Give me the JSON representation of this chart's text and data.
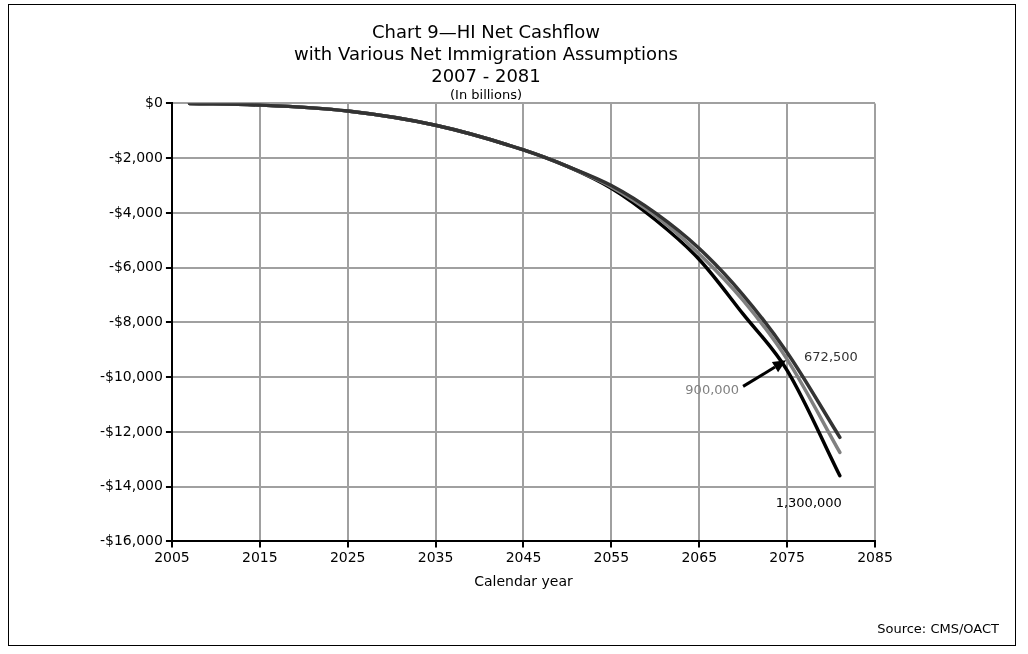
{
  "chart_data": {
    "type": "line",
    "title": "Chart 9—HI Net Cashflow\nwith Various Net Immigration Assumptions\n2007 - 2081",
    "subtitle": "(In billions)",
    "xlabel": "Calendar year",
    "annotations": [
      "Source: CMS/OACT"
    ],
    "xlim": [
      2005,
      2085
    ],
    "xticks": [
      2005,
      2015,
      2025,
      2035,
      2045,
      2055,
      2065,
      2075,
      2085
    ],
    "ylim": [
      -16000,
      0
    ],
    "yticks": [
      {
        "value": 0,
        "label": "$0"
      },
      {
        "value": -2000,
        "label": "-$2,000"
      },
      {
        "value": -4000,
        "label": "-$4,000"
      },
      {
        "value": -6000,
        "label": "-$6,000"
      },
      {
        "value": -8000,
        "label": "-$8,000"
      },
      {
        "value": -10000,
        "label": "-$10,000"
      },
      {
        "value": -12000,
        "label": "-$12,000"
      },
      {
        "value": -14000,
        "label": "-$14,000"
      },
      {
        "value": -16000,
        "label": "-$16,000"
      }
    ],
    "x": [
      2007,
      2015,
      2025,
      2035,
      2045,
      2050,
      2055,
      2060,
      2065,
      2070,
      2075,
      2081
    ],
    "series": [
      {
        "name": "672,500",
        "color": "#333333",
        "values": [
          0,
          -60,
          -280,
          -800,
          -1700,
          -2300,
          -3000,
          -4000,
          -5300,
          -7000,
          -9100,
          -12200
        ]
      },
      {
        "name": "900,000",
        "color": "#808080",
        "values": [
          0,
          -60,
          -280,
          -800,
          -1700,
          -2300,
          -3050,
          -4100,
          -5500,
          -7200,
          -9350,
          -12750
        ]
      },
      {
        "name": "1,300,000",
        "color": "#000000",
        "values": [
          0,
          -60,
          -280,
          -800,
          -1700,
          -2300,
          -3100,
          -4250,
          -5700,
          -7700,
          -9750,
          -13600
        ]
      }
    ],
    "grid": true,
    "legend": false,
    "marker": "none",
    "line_style": "solid"
  }
}
